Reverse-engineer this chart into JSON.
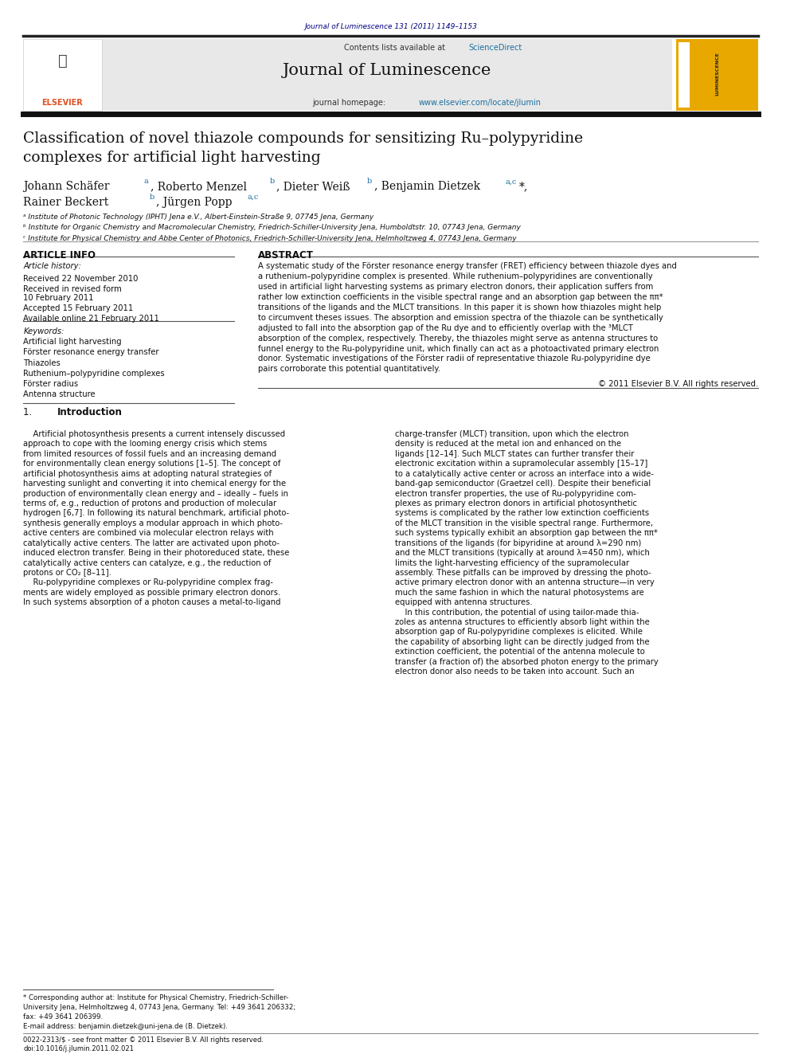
{
  "page_width": 9.92,
  "page_height": 13.23,
  "background_color": "#ffffff",
  "header_citation": "Journal of Luminescence 131 (2011) 1149–1153",
  "header_citation_color": "#000080",
  "journal_header_bg": "#e8e8e8",
  "journal_name": "Journal of Luminescence",
  "contents_line": "Contents lists available at ",
  "sciencedirect_color": "#1a6fa0",
  "journal_homepage_url_color": "#1a6fa0",
  "cover_bg": "#e8a800",
  "thick_bar_color": "#1a1a1a",
  "title": "Classification of novel thiazole compounds for sensitizing Ru–polypyridine\ncomplexes for artificial light harvesting",
  "affil_a": "ᵃ Institute of Photonic Technology (IPHT) Jena e.V., Albert-Einstein-Straße 9, 07745 Jena, Germany",
  "affil_b": "ᵇ Institute for Organic Chemistry and Macromolecular Chemistry, Friedrich-Schiller-University Jena, Humboldtstr. 10, 07743 Jena, Germany",
  "affil_c": "ᶜ Institute for Physical Chemistry and Abbe Center of Photonics, Friedrich-Schiller-University Jena, Helmholtzweg 4, 07743 Jena, Germany",
  "section_article_info": "ARTICLE INFO",
  "section_abstract": "ABSTRACT",
  "article_history_label": "Article history:",
  "received": "Received 22 November 2010",
  "revised": "Received in revised form",
  "revised2": "10 February 2011",
  "accepted": "Accepted 15 February 2011",
  "available": "Available online 21 February 2011",
  "keywords_label": "Keywords:",
  "keywords": [
    "Artificial light harvesting",
    "Förster resonance energy transfer",
    "Thiazoles",
    "Ruthenium–polypyridine complexes",
    "Förster radius",
    "Antenna structure"
  ],
  "copyright": "© 2011 Elsevier B.V. All rights reserved.",
  "footer_issn": "0022-2313/$ - see front matter © 2011 Elsevier B.V. All rights reserved.",
  "footer_doi": "doi:10.1016/j.jlumin.2011.02.021"
}
